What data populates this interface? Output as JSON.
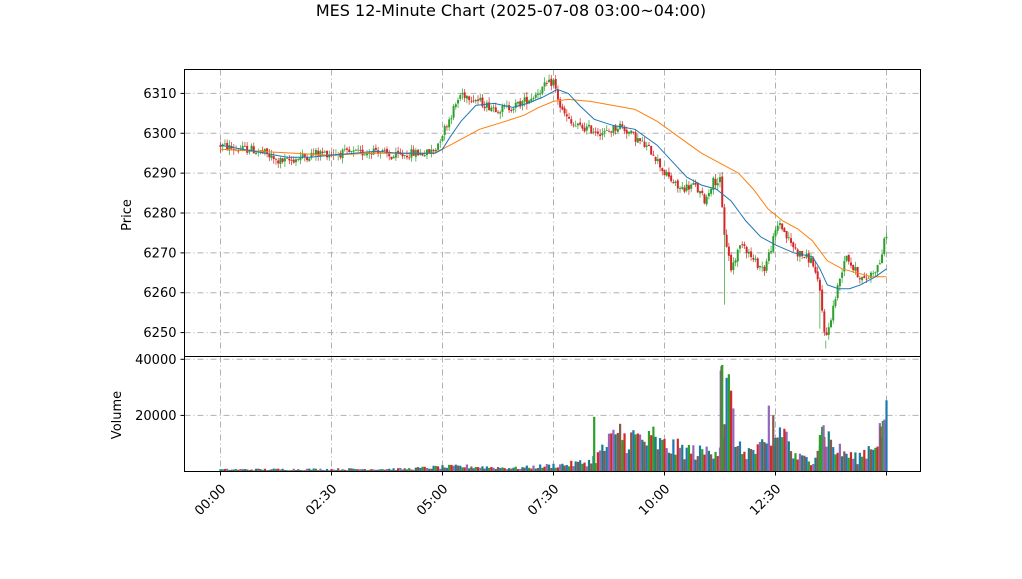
{
  "chart_data": {
    "type": "candlestick",
    "title": "MES 12-Minute Chart (2025-07-08 03:00~04:00)",
    "price_panel": {
      "ylabel": "Price",
      "ylim": [
        6244,
        6316
      ],
      "yticks": [
        6250,
        6260,
        6270,
        6280,
        6290,
        6300,
        6310
      ],
      "grid": true
    },
    "volume_panel": {
      "ylabel": "Volume",
      "ylim": [
        0,
        41000
      ],
      "yticks": [
        20000,
        40000
      ],
      "grid": true
    },
    "x_axis": {
      "ticks": [
        "00:00",
        "02:30",
        "05:00",
        "07:30",
        "10:00",
        "12:30"
      ],
      "tick_minutes": [
        0,
        150,
        300,
        450,
        600,
        750
      ],
      "end_minutes": 900
    },
    "colors": {
      "up": "#2ca02c",
      "down": "#d62728",
      "ma_short": "#1f77b4",
      "ma_long": "#ff7f0e",
      "volume": [
        "#1f77b4",
        "#2ca02c",
        "#d62728",
        "#9467bd",
        "#17807e",
        "#8c564b"
      ]
    },
    "price_path": [
      [
        0,
        6297
      ],
      [
        20,
        6296
      ],
      [
        40,
        6296
      ],
      [
        60,
        6295
      ],
      [
        75,
        6293
      ],
      [
        90,
        6293
      ],
      [
        110,
        6294
      ],
      [
        130,
        6295
      ],
      [
        150,
        6295
      ],
      [
        170,
        6295
      ],
      [
        190,
        6295
      ],
      [
        210,
        6296
      ],
      [
        230,
        6294
      ],
      [
        260,
        6295
      ],
      [
        280,
        6295
      ],
      [
        290,
        6296
      ],
      [
        300,
        6300
      ],
      [
        315,
        6306
      ],
      [
        325,
        6310
      ],
      [
        340,
        6309
      ],
      [
        360,
        6307
      ],
      [
        380,
        6306
      ],
      [
        400,
        6307
      ],
      [
        420,
        6309
      ],
      [
        440,
        6312
      ],
      [
        450,
        6313
      ],
      [
        460,
        6306
      ],
      [
        475,
        6302
      ],
      [
        500,
        6301
      ],
      [
        520,
        6300
      ],
      [
        540,
        6302
      ],
      [
        560,
        6299
      ],
      [
        585,
        6295
      ],
      [
        600,
        6290
      ],
      [
        620,
        6286
      ],
      [
        640,
        6287
      ],
      [
        655,
        6283
      ],
      [
        665,
        6288
      ],
      [
        675,
        6288
      ],
      [
        680,
        6276
      ],
      [
        690,
        6266
      ],
      [
        705,
        6273
      ],
      [
        720,
        6268
      ],
      [
        735,
        6266
      ],
      [
        745,
        6272
      ],
      [
        755,
        6278
      ],
      [
        765,
        6274
      ],
      [
        780,
        6270
      ],
      [
        800,
        6268
      ],
      [
        810,
        6260
      ],
      [
        818,
        6248
      ],
      [
        825,
        6254
      ],
      [
        835,
        6262
      ],
      [
        845,
        6270
      ],
      [
        855,
        6266
      ],
      [
        870,
        6263
      ],
      [
        880,
        6265
      ],
      [
        890,
        6267
      ],
      [
        900,
        6275
      ]
    ],
    "volume_path": [
      [
        0,
        700
      ],
      [
        250,
        900
      ],
      [
        290,
        1500
      ],
      [
        330,
        1800
      ],
      [
        400,
        1200
      ],
      [
        470,
        2500
      ],
      [
        500,
        3500
      ],
      [
        515,
        7000
      ],
      [
        530,
        11000
      ],
      [
        560,
        12000
      ],
      [
        600,
        9000
      ],
      [
        650,
        6500
      ],
      [
        675,
        9000
      ],
      [
        685,
        30000
      ],
      [
        700,
        7500
      ],
      [
        720,
        7000
      ],
      [
        745,
        9000
      ],
      [
        760,
        16000
      ],
      [
        775,
        5000
      ],
      [
        800,
        4000
      ],
      [
        815,
        15000
      ],
      [
        830,
        8000
      ],
      [
        860,
        4500
      ],
      [
        880,
        9000
      ],
      [
        900,
        18000
      ]
    ],
    "volume_spikes": [
      [
        505,
        19500
      ],
      [
        525,
        13500
      ],
      [
        540,
        17000
      ],
      [
        585,
        16000
      ],
      [
        676,
        36000
      ],
      [
        677,
        37500
      ],
      [
        678,
        38000
      ],
      [
        741,
        23500
      ],
      [
        747,
        20000
      ],
      [
        810,
        13000
      ],
      [
        815,
        16500
      ],
      [
        892,
        16000
      ],
      [
        895,
        18000
      ],
      [
        897,
        18500
      ]
    ],
    "ma_short": [
      [
        0,
        6297
      ],
      [
        30,
        6296
      ],
      [
        60,
        6295
      ],
      [
        90,
        6294
      ],
      [
        120,
        6294
      ],
      [
        150,
        6294.5
      ],
      [
        180,
        6295
      ],
      [
        210,
        6295.5
      ],
      [
        240,
        6295
      ],
      [
        270,
        6295
      ],
      [
        290,
        6295
      ],
      [
        300,
        6296
      ],
      [
        310,
        6299
      ],
      [
        325,
        6303
      ],
      [
        345,
        6307
      ],
      [
        370,
        6307.5
      ],
      [
        395,
        6306.5
      ],
      [
        415,
        6307.5
      ],
      [
        435,
        6309
      ],
      [
        455,
        6311
      ],
      [
        470,
        6310
      ],
      [
        485,
        6307
      ],
      [
        505,
        6303.5
      ],
      [
        530,
        6302
      ],
      [
        560,
        6301
      ],
      [
        590,
        6297
      ],
      [
        610,
        6293
      ],
      [
        630,
        6289
      ],
      [
        650,
        6287
      ],
      [
        670,
        6286
      ],
      [
        690,
        6283
      ],
      [
        710,
        6278
      ],
      [
        730,
        6274
      ],
      [
        750,
        6272
      ],
      [
        775,
        6270
      ],
      [
        800,
        6269
      ],
      [
        810,
        6266
      ],
      [
        820,
        6262
      ],
      [
        835,
        6261
      ],
      [
        850,
        6261
      ],
      [
        865,
        6262
      ],
      [
        885,
        6264
      ],
      [
        900,
        6266
      ]
    ],
    "ma_long": [
      [
        0,
        6296
      ],
      [
        50,
        6295.5
      ],
      [
        100,
        6295
      ],
      [
        150,
        6294.5
      ],
      [
        200,
        6295
      ],
      [
        250,
        6295
      ],
      [
        285,
        6295
      ],
      [
        300,
        6296
      ],
      [
        320,
        6298
      ],
      [
        350,
        6301
      ],
      [
        385,
        6303
      ],
      [
        410,
        6304.5
      ],
      [
        430,
        6306.5
      ],
      [
        450,
        6308
      ],
      [
        470,
        6308.5
      ],
      [
        500,
        6308
      ],
      [
        530,
        6307
      ],
      [
        560,
        6306
      ],
      [
        590,
        6303
      ],
      [
        620,
        6299
      ],
      [
        650,
        6295
      ],
      [
        680,
        6292
      ],
      [
        700,
        6290
      ],
      [
        720,
        6286
      ],
      [
        740,
        6281
      ],
      [
        760,
        6278
      ],
      [
        780,
        6276
      ],
      [
        800,
        6273
      ],
      [
        820,
        6268
      ],
      [
        840,
        6266
      ],
      [
        860,
        6265
      ],
      [
        880,
        6264
      ],
      [
        900,
        6264
      ]
    ]
  }
}
